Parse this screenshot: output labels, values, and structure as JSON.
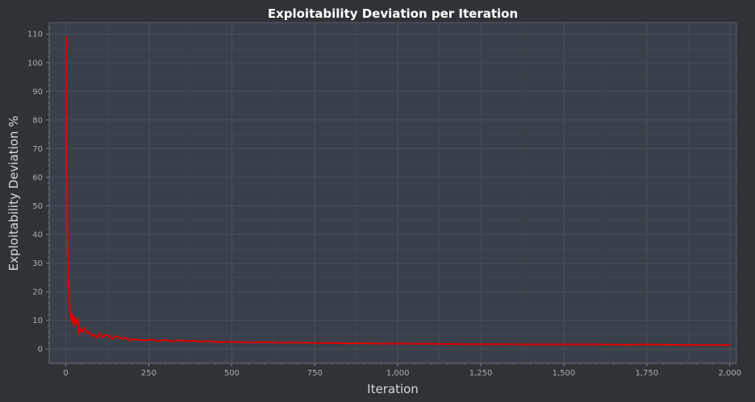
{
  "chart_data": {
    "type": "line",
    "title": "Exploitability Deviation per Iteration",
    "xlabel": "Iteration",
    "ylabel": "Exploitability Deviation %",
    "xlim": [
      -50,
      2020
    ],
    "ylim": [
      -5,
      114
    ],
    "x_ticks": [
      0,
      250,
      500,
      750,
      1000,
      1250,
      1500,
      1750,
      2000
    ],
    "x_tick_labels": [
      "0",
      "250",
      "500",
      "750",
      "1,000",
      "1,250",
      "1,500",
      "1,750",
      "2,000"
    ],
    "y_ticks": [
      0,
      10,
      20,
      30,
      40,
      50,
      60,
      70,
      80,
      90,
      100,
      110
    ],
    "y_tick_labels": [
      "0",
      "10",
      "20",
      "30",
      "40",
      "50",
      "60",
      "70",
      "80",
      "90",
      "100",
      "110"
    ],
    "grid": true,
    "colors": {
      "background": "#2f3338",
      "plot_background": "#3a4049",
      "grid": "#4a5059",
      "line": "#e00000"
    },
    "series": [
      {
        "x": [
          1,
          2,
          3,
          4,
          5,
          6,
          7,
          8,
          10,
          12,
          15,
          18,
          20,
          22,
          25,
          28,
          30,
          33,
          35,
          38,
          40,
          43,
          45,
          48,
          50,
          55,
          60,
          65,
          70,
          75,
          80,
          85,
          90,
          95,
          100,
          110,
          120,
          130,
          140,
          150,
          160,
          170,
          180,
          190,
          200,
          220,
          240,
          260,
          280,
          300,
          320,
          340,
          360,
          380,
          400,
          430,
          460,
          500,
          550,
          600,
          650,
          700,
          750,
          800,
          850,
          900,
          950,
          1000,
          1100,
          1200,
          1300,
          1400,
          1500,
          1600,
          1700,
          1750,
          1800,
          1900,
          2000
        ],
        "y": [
          109,
          100,
          80,
          60,
          45,
          35,
          28,
          24,
          18,
          14,
          11,
          10,
          12,
          9,
          11,
          8,
          10,
          9,
          11,
          7,
          5,
          6,
          7,
          6,
          6.5,
          7.5,
          6,
          5.5,
          6,
          5,
          4.5,
          5,
          4.5,
          4,
          5.5,
          4,
          5,
          4.5,
          3.5,
          4.5,
          4,
          3.5,
          4,
          3,
          3.5,
          3.2,
          3,
          3.3,
          2.8,
          3.2,
          2.7,
          3,
          2.8,
          2.9,
          2.6,
          2.7,
          2.4,
          2.5,
          2.3,
          2.4,
          2.2,
          2.3,
          2.1,
          2.1,
          2.0,
          2.0,
          1.9,
          1.9,
          1.8,
          1.7,
          1.7,
          1.6,
          1.6,
          1.6,
          1.5,
          1.6,
          1.5,
          1.4,
          1.4
        ]
      }
    ]
  }
}
